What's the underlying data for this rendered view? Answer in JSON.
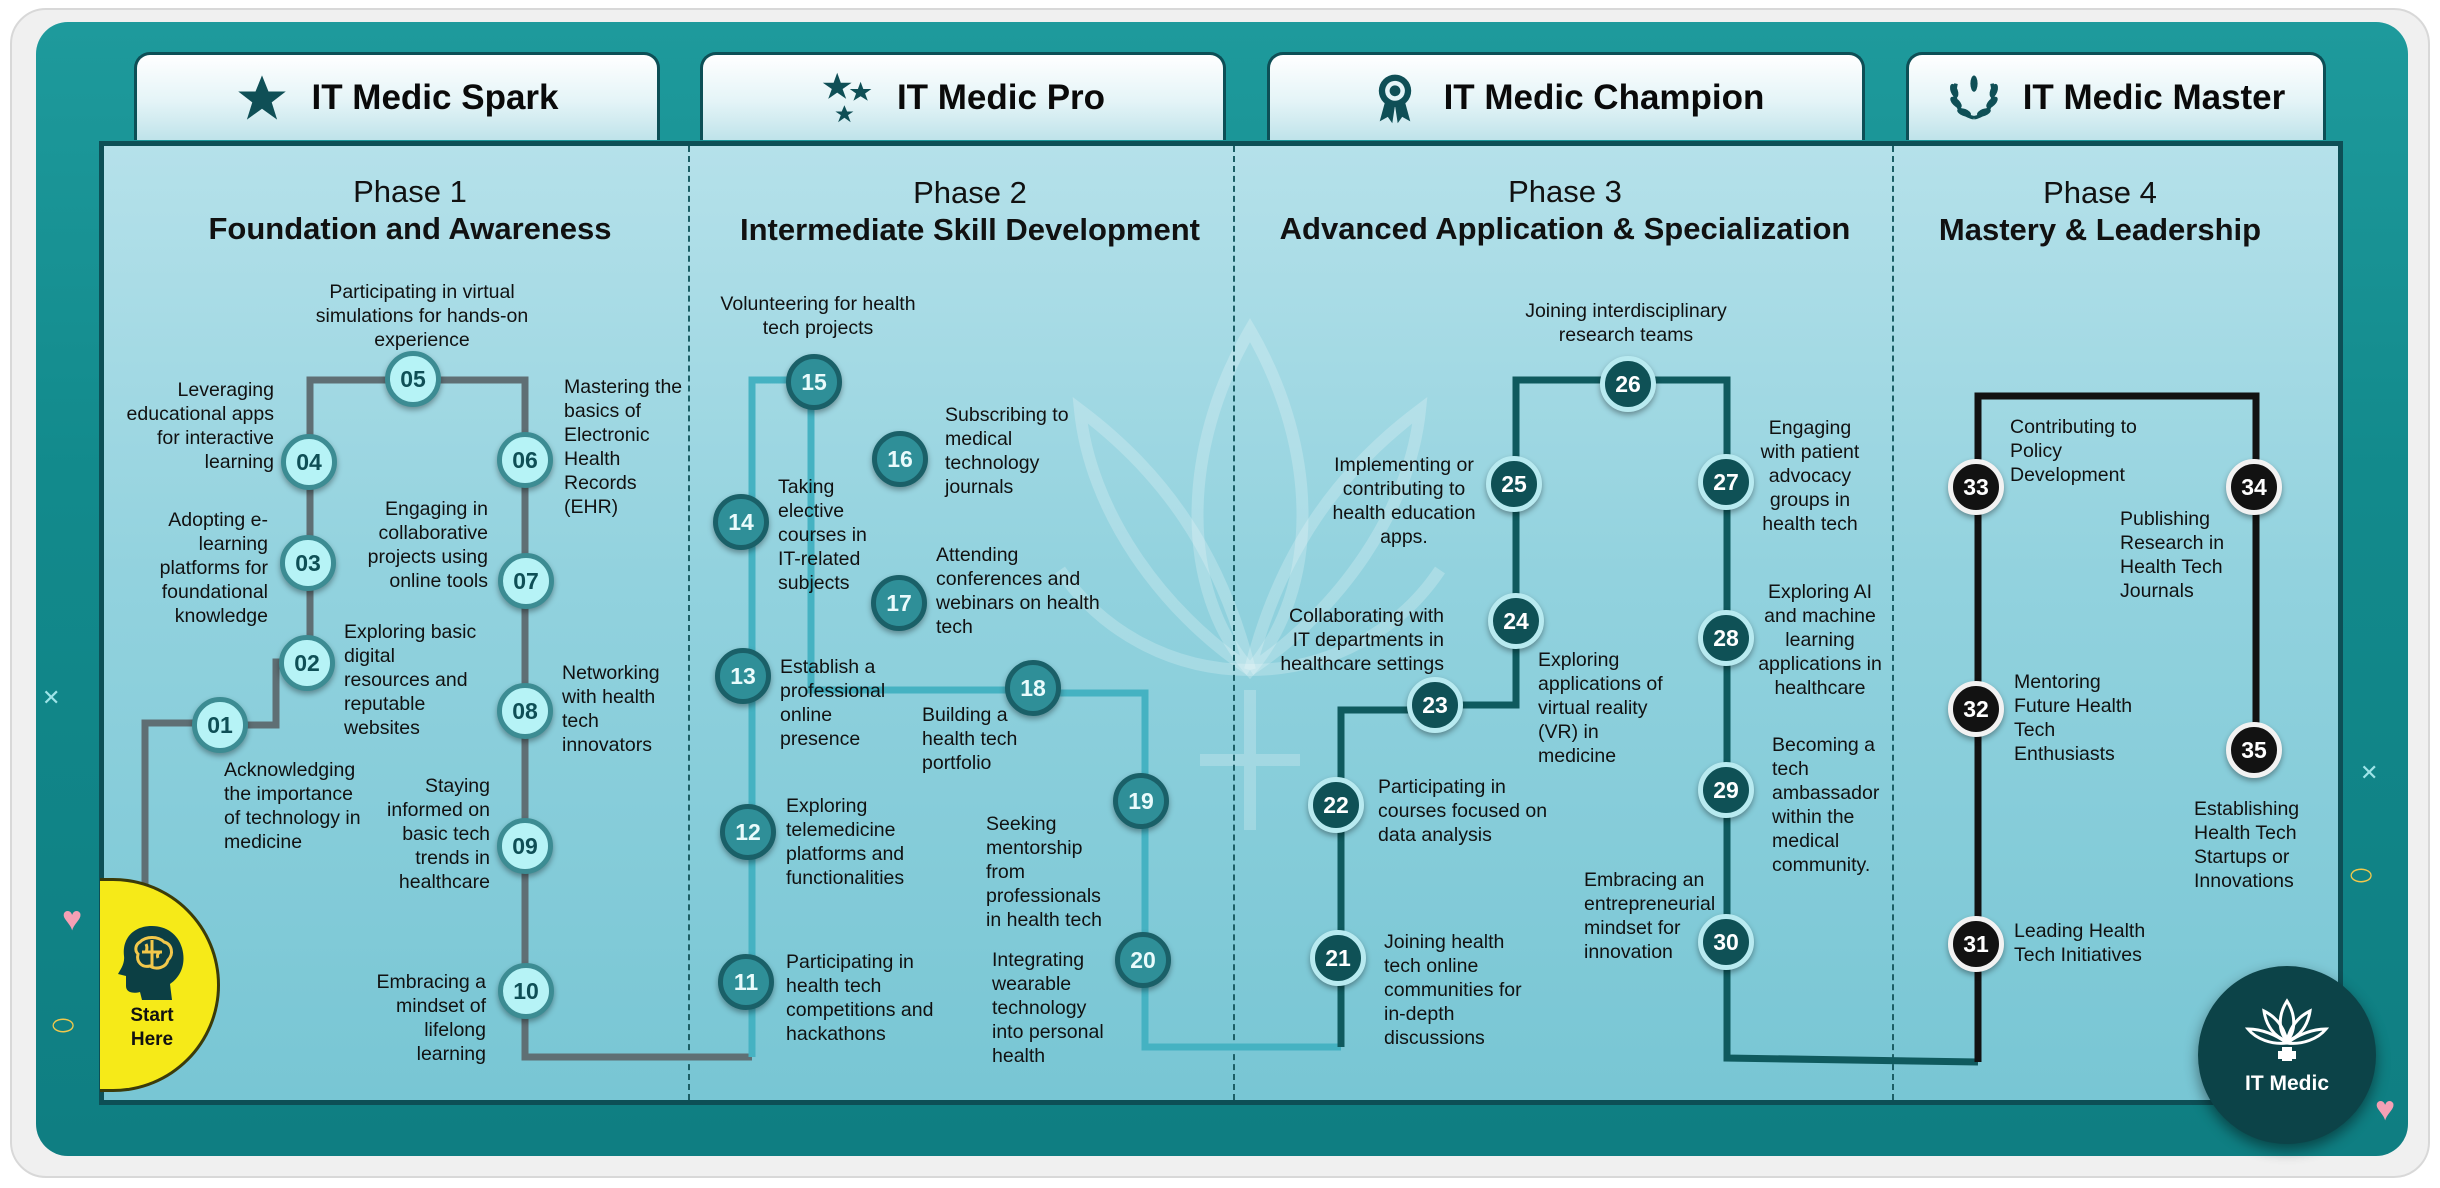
{
  "tabs": [
    {
      "label": "IT Medic Spark",
      "icon": "star-icon"
    },
    {
      "label": "IT Medic Pro",
      "icon": "stars-icon"
    },
    {
      "label": "IT Medic Champion",
      "icon": "award-ribbon-icon"
    },
    {
      "label": "IT Medic Master",
      "icon": "laurel-wreath-icon"
    }
  ],
  "phases": [
    {
      "number": "Phase 1",
      "title": "Foundation and Awareness"
    },
    {
      "number": "Phase 2",
      "title": "Intermediate Skill Development"
    },
    {
      "number": "Phase 3",
      "title": "Advanced Application & Specialization"
    },
    {
      "number": "Phase 4",
      "title": "Mastery & Leadership"
    }
  ],
  "steps": [
    {
      "num": "01",
      "text": "Acknowledging the importance of technology in medicine"
    },
    {
      "num": "02",
      "text": "Exploring basic digital resources and reputable websites"
    },
    {
      "num": "03",
      "text": "Adopting e-learning platforms for foundational knowledge"
    },
    {
      "num": "04",
      "text": "Leveraging educational apps for interactive learning"
    },
    {
      "num": "05",
      "text": "Participating in virtual simulations for hands-on experience"
    },
    {
      "num": "06",
      "text": "Mastering the basics of Electronic Health Records (EHR)"
    },
    {
      "num": "07",
      "text": "Engaging in collaborative projects using online tools"
    },
    {
      "num": "08",
      "text": "Networking with health tech innovators"
    },
    {
      "num": "09",
      "text": "Staying informed on basic tech trends in healthcare"
    },
    {
      "num": "10",
      "text": "Embracing a mindset of lifelong learning"
    },
    {
      "num": "11",
      "text": "Participating in health tech competitions and hackathons"
    },
    {
      "num": "12",
      "text": "Exploring telemedicine platforms and functionalities"
    },
    {
      "num": "13",
      "text": "Establish a professional online presence"
    },
    {
      "num": "14",
      "text": "Taking elective courses in IT-related subjects"
    },
    {
      "num": "15",
      "text": "Volunteering for health tech projects"
    },
    {
      "num": "16",
      "text": "Subscribing to medical technology journals"
    },
    {
      "num": "17",
      "text": "Attending conferences and webinars on health tech"
    },
    {
      "num": "18",
      "text": "Building a health tech portfolio"
    },
    {
      "num": "19",
      "text": "Seeking mentorship from professionals in health tech"
    },
    {
      "num": "20",
      "text": "Integrating wearable technology into personal health"
    },
    {
      "num": "21",
      "text": "Joining health tech online communities for in-depth discussions"
    },
    {
      "num": "22",
      "text": "Participating in courses focused on data analysis"
    },
    {
      "num": "23",
      "text": "Collaborating with IT departments in healthcare settings"
    },
    {
      "num": "24",
      "text": "Exploring applications of virtual reality (VR) in medicine"
    },
    {
      "num": "25",
      "text": "Implementing or contributing to health education apps."
    },
    {
      "num": "26",
      "text": "Joining interdisciplinary research teams"
    },
    {
      "num": "27",
      "text": "Engaging with patient advocacy groups in health tech"
    },
    {
      "num": "28",
      "text": "Exploring AI and machine learning applications in healthcare"
    },
    {
      "num": "29",
      "text": "Becoming a tech ambassador within the medical community."
    },
    {
      "num": "30",
      "text": "Embracing an entrepreneurial mindset for innovation"
    },
    {
      "num": "31",
      "text": "Leading Health Tech Initiatives"
    },
    {
      "num": "32",
      "text": "Mentoring Future Health Tech Enthusiasts"
    },
    {
      "num": "33",
      "text": "Contributing to Policy Development"
    },
    {
      "num": "34",
      "text": "Publishing Research in Health Tech Journals"
    },
    {
      "num": "35",
      "text": "Establishing Health Tech Startups or Innovations"
    }
  ],
  "start": {
    "label": "Start Here",
    "icon": "brain-head-icon"
  },
  "logo": {
    "label": "IT Medic",
    "icon": "lotus-medical-cross-icon"
  },
  "colors": {
    "phase1_path": "#5f6f74",
    "phase2_path": "#45b2c2",
    "phase3_path": "#0f5a5e",
    "phase4_path": "#121212",
    "start": "#f6ea18",
    "teal": "#128a8c"
  }
}
